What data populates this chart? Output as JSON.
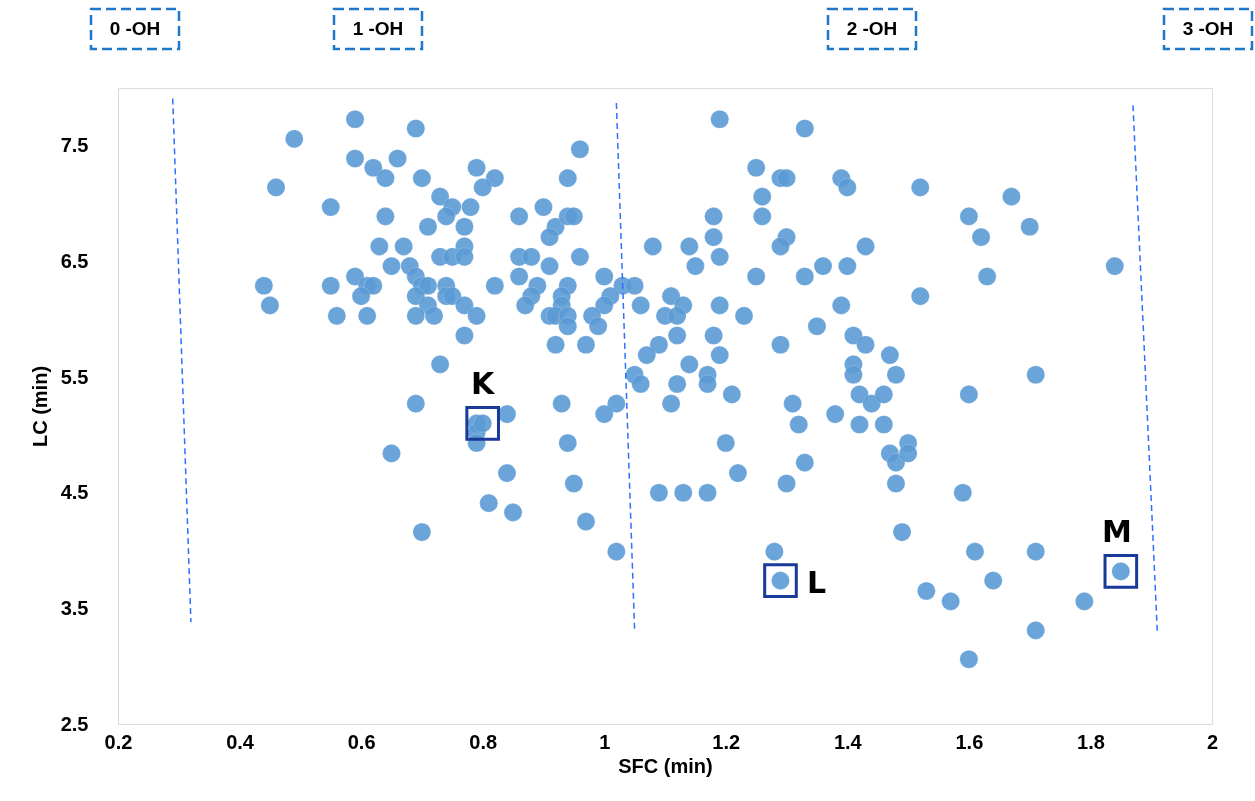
{
  "chart_data": {
    "type": "scatter",
    "xlabel": "SFC (min)",
    "ylabel": "LC (min)",
    "xlim": [
      0.2,
      2
    ],
    "ylim": [
      2.5,
      8
    ],
    "xticks": [
      0.2,
      0.4,
      0.6,
      0.8,
      1,
      1.2,
      1.4,
      1.6,
      1.8,
      2
    ],
    "yticks": [
      2.5,
      3.5,
      4.5,
      5.5,
      6.5,
      7.5
    ],
    "series": [
      {
        "marker": "circle",
        "color": "#5b9bd5",
        "x": [
          0.59,
          0.69,
          0.49,
          0.59,
          0.62,
          0.66,
          0.64,
          0.7,
          0.79,
          0.82,
          0.8,
          0.96,
          0.94,
          0.46,
          0.73,
          0.75,
          0.74,
          0.78,
          0.55,
          0.64,
          0.71,
          0.77,
          0.86,
          0.9,
          0.92,
          0.91,
          0.94,
          0.63,
          0.67,
          0.77,
          0.73,
          0.75,
          0.77,
          0.86,
          0.88,
          0.65,
          0.68,
          0.86,
          0.91,
          0.59,
          0.61,
          0.62,
          0.69,
          0.7,
          0.71,
          0.74,
          0.82,
          0.89,
          0.94,
          0.44,
          0.55,
          0.6,
          0.45,
          0.69,
          0.74,
          0.75,
          0.88,
          0.93,
          0.71,
          0.77,
          0.87,
          0.93,
          0.56,
          0.61,
          0.69,
          0.72,
          0.79,
          0.91,
          0.92,
          0.94,
          0.94,
          0.77,
          0.92,
          0.73,
          1.19,
          1.33,
          0.95,
          1.25,
          1.29,
          1.3,
          1.39,
          1.4,
          1.26,
          1.26,
          1.18,
          1.18,
          1.3,
          1.29,
          1.43,
          1.08,
          1.14,
          1.19,
          1.15,
          0.96,
          1.36,
          1.4,
          1.25,
          1.33,
          1.0,
          1.03,
          1.05,
          1.01,
          1.0,
          1.06,
          1.11,
          1.13,
          1.19,
          1.23,
          1.39,
          1.1,
          1.12,
          0.98,
          0.99,
          1.35,
          1.12,
          1.18,
          1.41,
          1.43,
          1.29,
          0.97,
          1.09,
          1.07,
          1.19,
          1.14,
          1.41,
          1.41,
          1.47,
          1.48,
          1.05,
          1.06,
          1.12,
          1.17,
          1.17,
          1.21,
          1.11,
          1.02,
          1.0,
          0.93,
          0.94,
          0.95,
          0.97,
          1.02,
          1.09,
          1.13,
          1.17,
          1.2,
          1.22,
          1.31,
          1.32,
          1.33,
          1.3,
          1.28,
          1.29,
          1.38,
          1.42,
          1.42,
          1.44,
          1.46,
          1.46,
          1.47,
          1.48,
          1.48,
          1.49,
          0.69,
          0.79,
          0.79,
          0.79,
          0.84,
          0.65,
          0.84,
          0.81,
          0.85,
          0.7,
          0.8,
          1.52,
          1.6,
          1.62,
          1.67,
          1.7,
          1.84,
          1.63,
          1.52,
          1.71,
          1.6,
          1.5,
          1.5,
          1.59,
          1.61,
          1.71,
          1.85,
          1.64,
          1.53,
          1.57,
          1.79,
          1.71,
          1.6
        ],
        "values": [
          7.73,
          7.65,
          7.56,
          7.39,
          7.31,
          7.39,
          7.22,
          7.22,
          7.31,
          7.22,
          7.14,
          7.47,
          7.22,
          7.14,
          7.06,
          6.97,
          6.89,
          6.97,
          6.97,
          6.89,
          6.8,
          6.8,
          6.89,
          6.97,
          6.8,
          6.71,
          6.89,
          6.63,
          6.63,
          6.63,
          6.54,
          6.54,
          6.54,
          6.54,
          6.54,
          6.46,
          6.46,
          6.37,
          6.46,
          6.37,
          6.29,
          6.29,
          6.37,
          6.29,
          6.29,
          6.29,
          6.29,
          6.29,
          6.29,
          6.29,
          6.29,
          6.2,
          6.12,
          6.2,
          6.2,
          6.2,
          6.2,
          6.2,
          6.12,
          6.12,
          6.12,
          6.12,
          6.03,
          6.03,
          6.03,
          6.03,
          6.03,
          6.03,
          6.03,
          6.03,
          5.94,
          5.86,
          5.78,
          5.61,
          7.73,
          7.65,
          6.89,
          7.31,
          7.22,
          7.22,
          7.22,
          7.14,
          7.06,
          6.89,
          6.89,
          6.71,
          6.71,
          6.63,
          6.63,
          6.63,
          6.63,
          6.54,
          6.46,
          6.54,
          6.46,
          6.46,
          6.37,
          6.37,
          6.37,
          6.29,
          6.29,
          6.2,
          6.12,
          6.12,
          6.2,
          6.12,
          6.12,
          6.03,
          6.12,
          6.03,
          6.03,
          6.03,
          5.94,
          5.94,
          5.86,
          5.86,
          5.86,
          5.78,
          5.78,
          5.78,
          5.78,
          5.69,
          5.69,
          5.61,
          5.61,
          5.52,
          5.69,
          5.52,
          5.52,
          5.44,
          5.44,
          5.52,
          5.44,
          5.35,
          5.27,
          5.27,
          5.18,
          5.27,
          4.93,
          4.58,
          4.25,
          3.99,
          4.5,
          4.5,
          4.5,
          4.93,
          4.67,
          5.27,
          5.09,
          4.76,
          4.58,
          3.99,
          3.74,
          5.18,
          5.09,
          5.35,
          5.27,
          5.35,
          5.09,
          4.84,
          4.76,
          4.58,
          4.16,
          5.27,
          5.1,
          5.02,
          4.93,
          5.18,
          4.84,
          4.67,
          4.41,
          4.33,
          4.16,
          5.1,
          7.14,
          6.89,
          6.71,
          7.06,
          6.8,
          6.46,
          6.37,
          6.2,
          5.52,
          5.35,
          4.93,
          4.84,
          4.5,
          3.99,
          3.99,
          3.82,
          3.74,
          3.65,
          3.56,
          3.56,
          3.31,
          3.06
        ]
      },
      {
        "type": "line",
        "color": "#2f6fff",
        "line_style": "dashed",
        "x": [
          0.29,
          0.32
        ],
        "values": [
          7.91,
          3.38
        ]
      },
      {
        "type": "line",
        "color": "#2f6fff",
        "line_style": "dashed",
        "x": [
          1.02,
          1.05
        ],
        "values": [
          7.87,
          3.31
        ]
      },
      {
        "type": "line",
        "color": "#2f6fff",
        "line_style": "dashed",
        "x": [
          1.87,
          1.91
        ],
        "values": [
          7.85,
          3.3
        ]
      }
    ],
    "annotations": [
      "0 -OH",
      "1 -OH",
      "2 -OH",
      "3 -OH",
      {
        "text": "K",
        "x": 0.8,
        "y": 5.1
      },
      {
        "text": "L",
        "x": 1.29,
        "y": 3.74
      },
      {
        "text": "M",
        "x": 1.85,
        "y": 3.82
      }
    ]
  }
}
